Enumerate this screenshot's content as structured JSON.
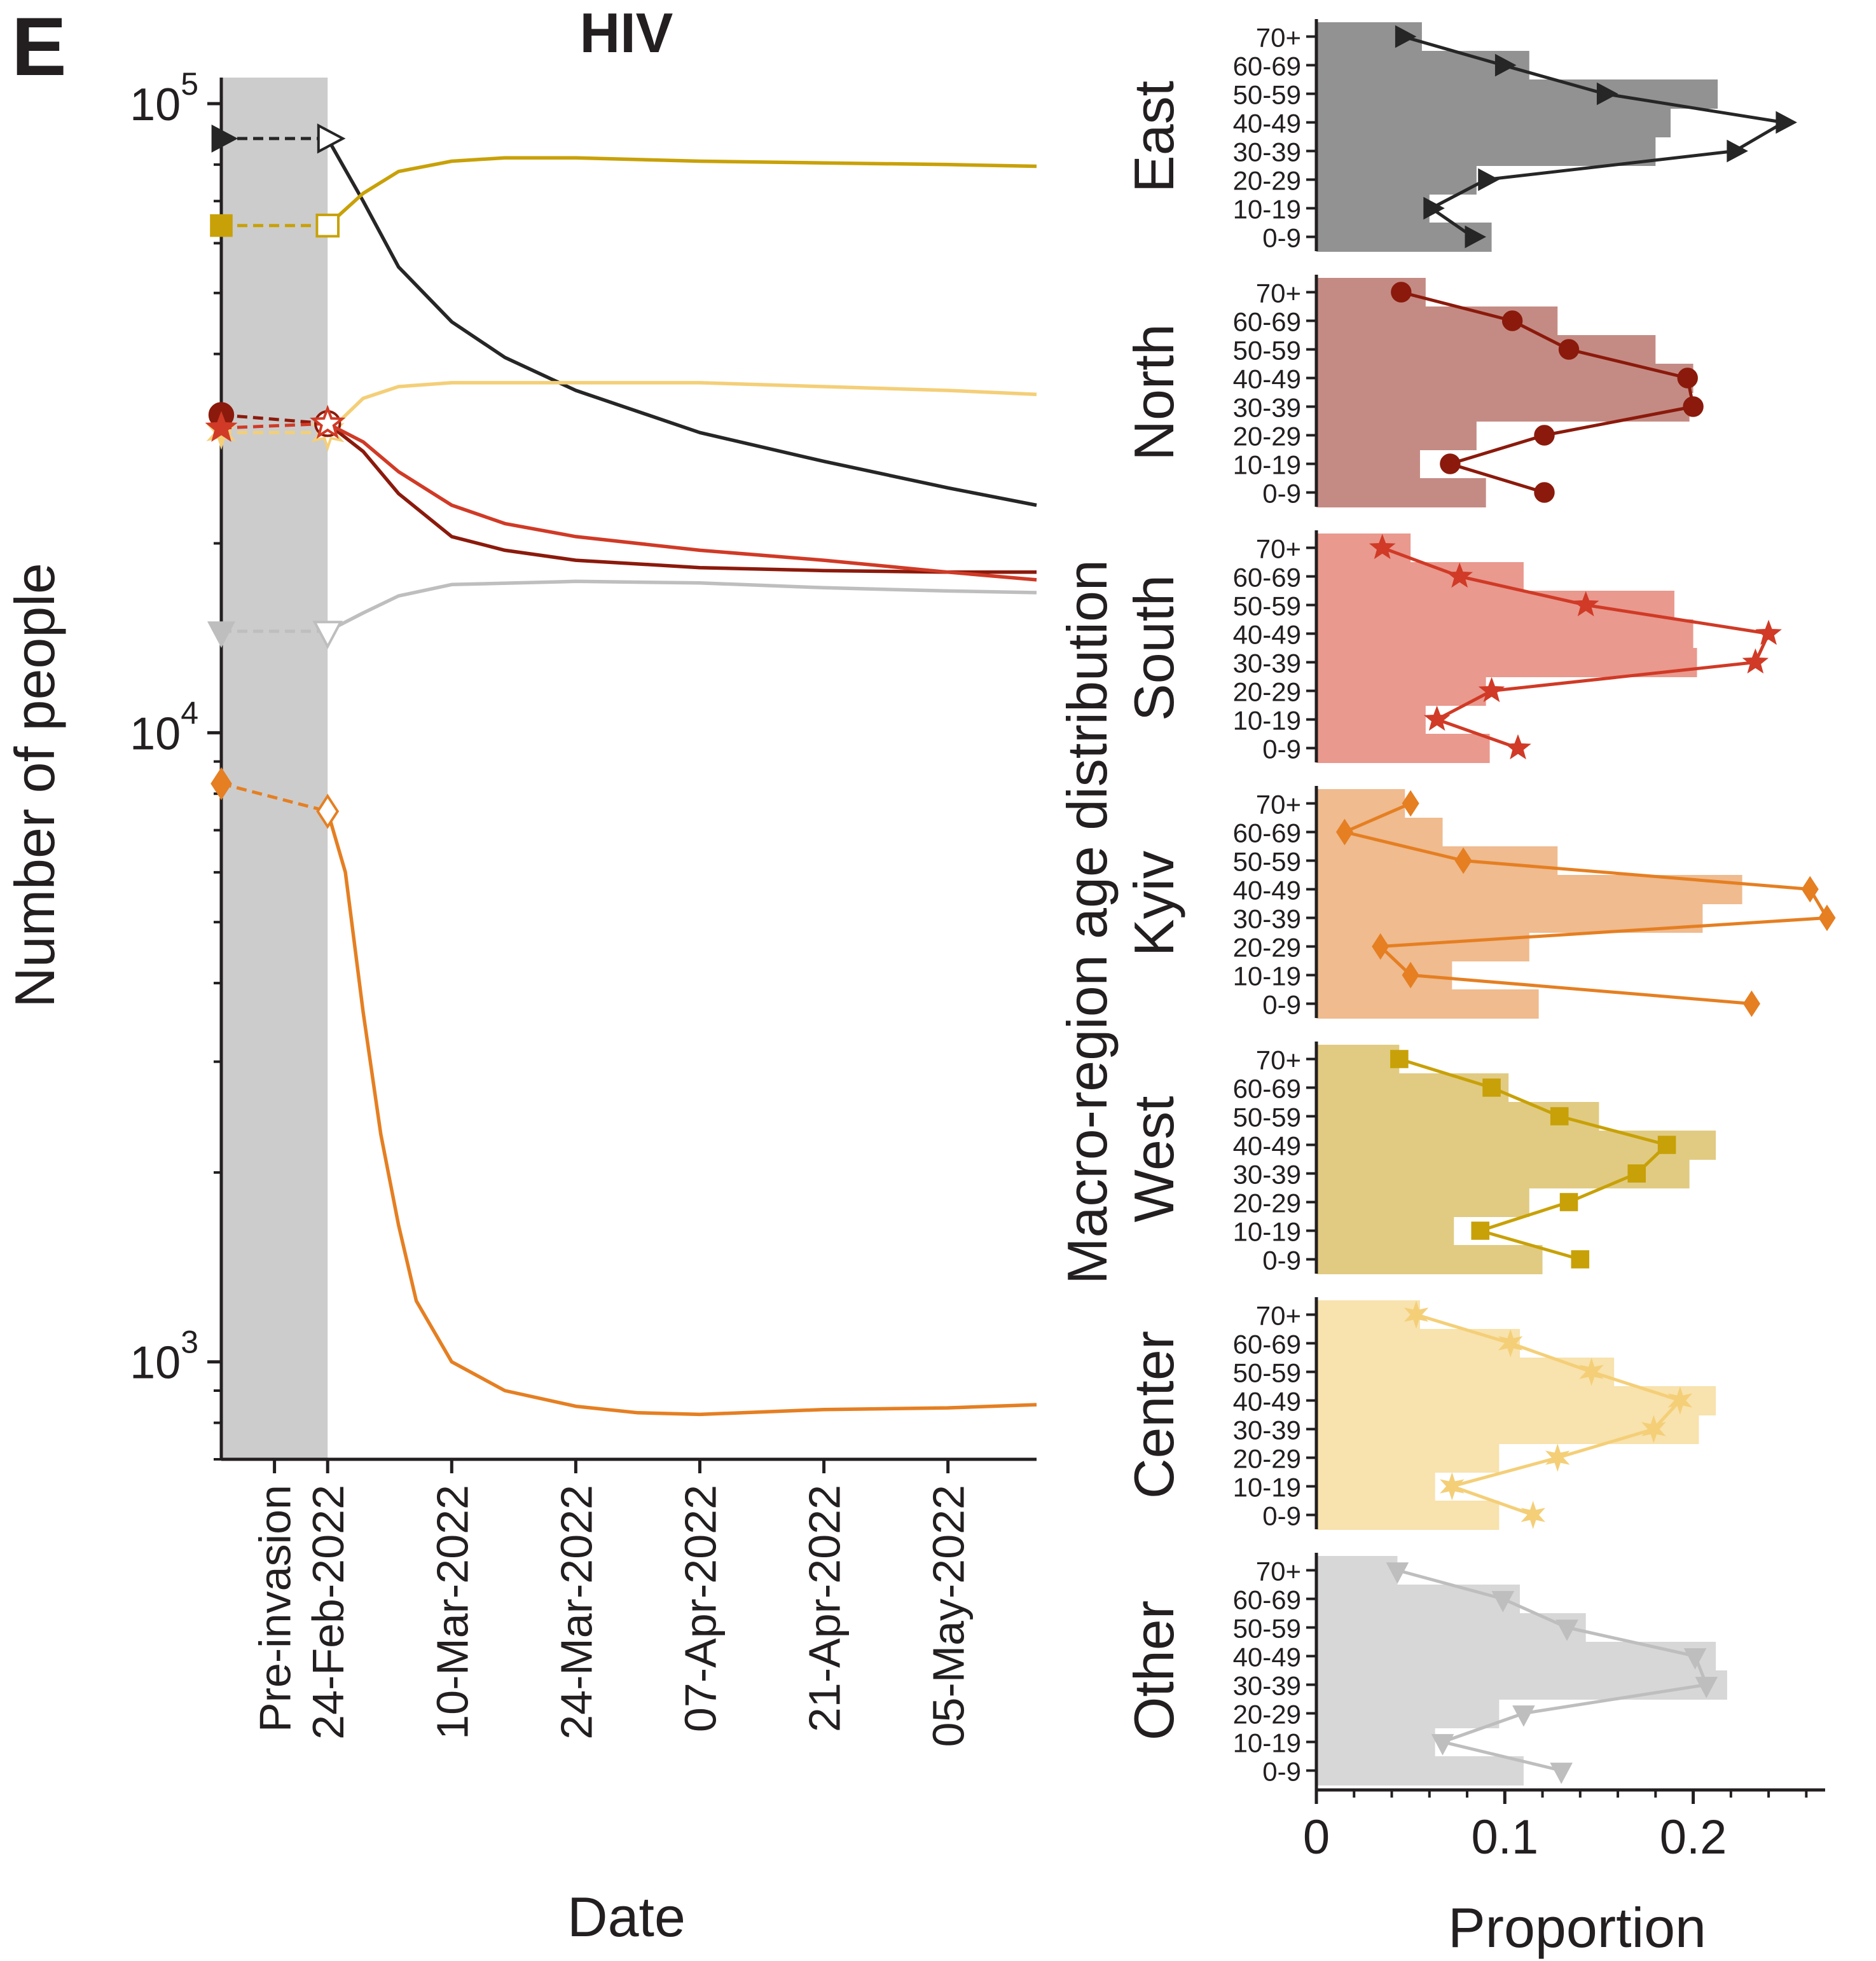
{
  "panel_label": "E",
  "chart_data": [
    {
      "type": "line",
      "title": "HIV",
      "xlabel": "Date",
      "ylabel": "Number of people",
      "yscale": "log",
      "ylim": [
        700,
        110000
      ],
      "y_ticks": [
        {
          "value": 1000,
          "base": "10",
          "exp": "3"
        },
        {
          "value": 10000,
          "base": "10",
          "exp": "4"
        },
        {
          "value": 100000,
          "base": "10",
          "exp": "5"
        }
      ],
      "x_ticks": [
        "Pre-invasion",
        "24-Feb-2022",
        "10-Mar-2022",
        "24-Mar-2022",
        "07-Apr-2022",
        "21-Apr-2022",
        "05-May-2022"
      ],
      "x_tick_day_offsets": [
        -6,
        0,
        14,
        28,
        42,
        56,
        70
      ],
      "xlim_days": [
        -12,
        80
      ],
      "shaded_region_days": [
        -12,
        0
      ],
      "grid": false,
      "legend": "none",
      "series": [
        {
          "region": "East",
          "color": "#262626",
          "marker": "triangle-right",
          "pre_invasion": 88000,
          "points": [
            [
              0,
              88000
            ],
            [
              4,
              70000
            ],
            [
              8,
              55000
            ],
            [
              14,
              45000
            ],
            [
              20,
              39500
            ],
            [
              28,
              35000
            ],
            [
              42,
              30000
            ],
            [
              56,
              27000
            ],
            [
              70,
              24500
            ],
            [
              80,
              23000
            ]
          ]
        },
        {
          "region": "West",
          "color": "#c8a108",
          "marker": "square",
          "pre_invasion": 64000,
          "points": [
            [
              0,
              64000
            ],
            [
              4,
              72000
            ],
            [
              8,
              78000
            ],
            [
              14,
              81000
            ],
            [
              20,
              82000
            ],
            [
              28,
              82000
            ],
            [
              42,
              81000
            ],
            [
              56,
              80500
            ],
            [
              70,
              80000
            ],
            [
              80,
              79500
            ]
          ]
        },
        {
          "region": "Center",
          "color": "#f4cf78",
          "marker": "star-4",
          "pre_invasion": 30000,
          "points": [
            [
              0,
              30000
            ],
            [
              4,
              34000
            ],
            [
              8,
              35500
            ],
            [
              14,
              36000
            ],
            [
              28,
              36000
            ],
            [
              42,
              36000
            ],
            [
              56,
              35500
            ],
            [
              70,
              35000
            ],
            [
              80,
              34500
            ]
          ]
        },
        {
          "region": "North",
          "color": "#8b1a0c",
          "marker": "circle",
          "pre_invasion": 32000,
          "points": [
            [
              0,
              31000
            ],
            [
              4,
              28000
            ],
            [
              8,
              24000
            ],
            [
              14,
              20500
            ],
            [
              20,
              19500
            ],
            [
              28,
              18800
            ],
            [
              42,
              18300
            ],
            [
              56,
              18100
            ],
            [
              70,
              18000
            ],
            [
              80,
              18000
            ]
          ]
        },
        {
          "region": "South",
          "color": "#d03a26",
          "marker": "star",
          "pre_invasion": 30500,
          "points": [
            [
              0,
              31000
            ],
            [
              4,
              29000
            ],
            [
              8,
              26000
            ],
            [
              14,
              23000
            ],
            [
              20,
              21500
            ],
            [
              28,
              20500
            ],
            [
              42,
              19500
            ],
            [
              56,
              18800
            ],
            [
              70,
              18000
            ],
            [
              80,
              17500
            ]
          ]
        },
        {
          "region": "Other",
          "color": "#bebebe",
          "marker": "triangle-down",
          "pre_invasion": 14500,
          "points": [
            [
              0,
              14500
            ],
            [
              4,
              15500
            ],
            [
              8,
              16500
            ],
            [
              14,
              17200
            ],
            [
              28,
              17400
            ],
            [
              42,
              17300
            ],
            [
              56,
              17000
            ],
            [
              70,
              16800
            ],
            [
              80,
              16700
            ]
          ]
        },
        {
          "region": "Kyiv",
          "color": "#e57f22",
          "marker": "diamond",
          "pre_invasion": 8300,
          "points": [
            [
              0,
              7500
            ],
            [
              2,
              6000
            ],
            [
              4,
              3600
            ],
            [
              6,
              2300
            ],
            [
              8,
              1650
            ],
            [
              10,
              1250
            ],
            [
              14,
              1000
            ],
            [
              20,
              900
            ],
            [
              28,
              850
            ],
            [
              35,
              830
            ],
            [
              42,
              825
            ],
            [
              56,
              840
            ],
            [
              70,
              845
            ],
            [
              80,
              855
            ]
          ]
        }
      ]
    },
    {
      "type": "bar",
      "orientation": "horizontal",
      "title": "",
      "xlabel": "Proportion",
      "ylabel": "Macro-region age distribution",
      "xlim": [
        0,
        0.27
      ],
      "x_ticks": [
        "0",
        "0.1",
        "0.2"
      ],
      "x_tick_values": [
        0,
        0.1,
        0.2
      ],
      "categories": [
        "70+",
        "60-69",
        "50-59",
        "40-49",
        "30-39",
        "20-29",
        "10-19",
        "0-9"
      ],
      "grid": false,
      "legend": "none",
      "panels": [
        {
          "region": "East",
          "bar_color": "#929292",
          "line_color": "#262626",
          "marker": "triangle-right",
          "bars": [
            0.056,
            0.113,
            0.213,
            0.188,
            0.18,
            0.085,
            0.06,
            0.093
          ],
          "line": [
            0.046,
            0.099,
            0.153,
            0.248,
            0.222,
            0.09,
            0.061,
            0.083
          ]
        },
        {
          "region": "North",
          "bar_color": "#c48b84",
          "line_color": "#8b1a0c",
          "marker": "circle",
          "bars": [
            0.058,
            0.128,
            0.18,
            0.2,
            0.198,
            0.085,
            0.055,
            0.09
          ],
          "line": [
            0.045,
            0.104,
            0.134,
            0.197,
            0.2,
            0.121,
            0.071,
            0.121
          ]
        },
        {
          "region": "South",
          "bar_color": "#e9998e",
          "line_color": "#d03a26",
          "marker": "star",
          "bars": [
            0.05,
            0.11,
            0.19,
            0.2,
            0.202,
            0.09,
            0.058,
            0.092
          ],
          "line": [
            0.035,
            0.076,
            0.143,
            0.24,
            0.233,
            0.093,
            0.064,
            0.107
          ]
        },
        {
          "region": "Kyiv",
          "bar_color": "#efbb8f",
          "line_color": "#e57f22",
          "marker": "diamond",
          "bars": [
            0.047,
            0.067,
            0.128,
            0.226,
            0.205,
            0.113,
            0.072,
            0.118
          ],
          "line": [
            0.05,
            0.015,
            0.078,
            0.262,
            0.271,
            0.034,
            0.05,
            0.231
          ]
        },
        {
          "region": "West",
          "bar_color": "#e1cb82",
          "line_color": "#c8a108",
          "marker": "square",
          "bars": [
            0.044,
            0.102,
            0.15,
            0.212,
            0.198,
            0.113,
            0.073,
            0.12
          ],
          "line": [
            0.044,
            0.093,
            0.129,
            0.186,
            0.17,
            0.134,
            0.087,
            0.14
          ]
        },
        {
          "region": "Center",
          "bar_color": "#f8e2ad",
          "line_color": "#f4cf78",
          "marker": "star-4",
          "bars": [
            0.055,
            0.108,
            0.158,
            0.212,
            0.203,
            0.097,
            0.063,
            0.097
          ],
          "line": [
            0.053,
            0.103,
            0.146,
            0.193,
            0.179,
            0.128,
            0.072,
            0.115
          ]
        },
        {
          "region": "Other",
          "bar_color": "#d7d7d7",
          "line_color": "#bebebe",
          "marker": "triangle-down",
          "bars": [
            0.043,
            0.108,
            0.143,
            0.212,
            0.218,
            0.097,
            0.063,
            0.11
          ],
          "line": [
            0.043,
            0.099,
            0.133,
            0.201,
            0.207,
            0.11,
            0.067,
            0.13
          ]
        }
      ]
    }
  ]
}
